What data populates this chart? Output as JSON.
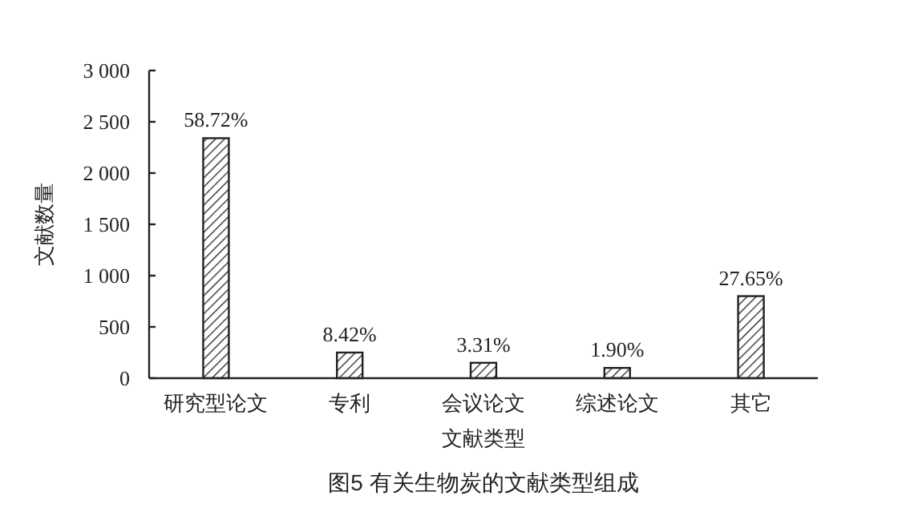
{
  "chart_data": {
    "type": "bar",
    "title": "图5 有关生物炭的文献类型组成",
    "xlabel": "文献类型",
    "ylabel": "文献数量",
    "categories": [
      "研究型论文",
      "专利",
      "会议论文",
      "综述论文",
      "其它"
    ],
    "values": [
      2340,
      250,
      150,
      100,
      800
    ],
    "annotations": [
      {
        "text": "58.72%",
        "x": "研究型论文",
        "y": 2340
      },
      {
        "text": "8.42%",
        "x": "专利",
        "y": 250
      },
      {
        "text": "3.31%",
        "x": "会议论文",
        "y": 150
      },
      {
        "text": "1.90%",
        "x": "综述论文",
        "y": 100
      },
      {
        "text": "27.65%",
        "x": "其它",
        "y": 800
      }
    ],
    "color": "#222222",
    "ylim": [
      0,
      3000
    ],
    "yticks": [
      0,
      {
        "value": 500,
        "label": "500"
      },
      {
        "value": 1000,
        "label": "1 000"
      },
      {
        "value": 1500,
        "label": "1 500"
      },
      {
        "value": 2000,
        "label": "2 000"
      },
      {
        "value": 2500,
        "label": "2 500"
      },
      {
        "value": 3000,
        "label": "3 000"
      }
    ],
    "grid": false
  }
}
